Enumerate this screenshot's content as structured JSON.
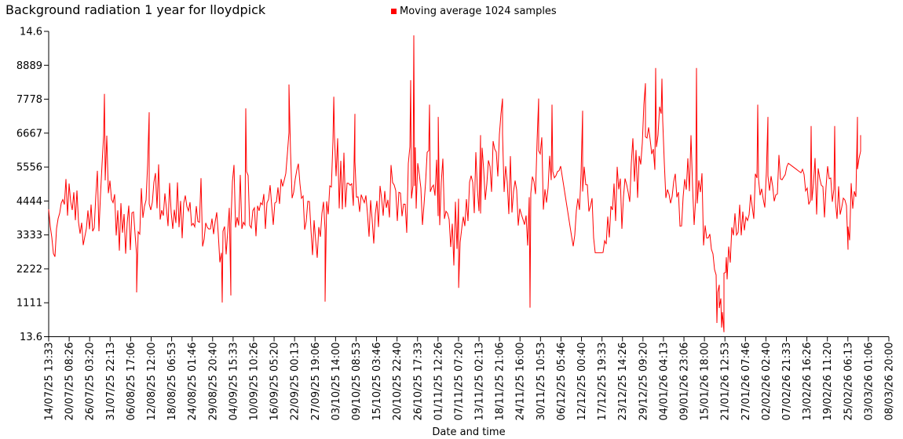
{
  "chart_data": {
    "type": "line",
    "title": "Background radiation 1 year for lloydpick",
    "legend": [
      "Moving average 1024 samples"
    ],
    "legend_position": "top-center",
    "xlabel": "Date and time",
    "ylabel": "",
    "grid": false,
    "background_color": "#ffffff",
    "axis_color": "#000000",
    "line_color": "#ff0000",
    "y_axis": {
      "scale_min": 0,
      "scale_max": 10000,
      "ticks": [
        {
          "label": "14.6",
          "value": 10000
        },
        {
          "label": "8889",
          "value": 8889
        },
        {
          "label": "7778",
          "value": 7778
        },
        {
          "label": "6667",
          "value": 6667
        },
        {
          "label": "5556",
          "value": 5556
        },
        {
          "label": "4444",
          "value": 4444
        },
        {
          "label": "3333",
          "value": 3333
        },
        {
          "label": "2222",
          "value": 2222
        },
        {
          "label": "1111",
          "value": 1111
        },
        {
          "label": "13.6",
          "value": 0
        }
      ]
    },
    "x_axis": {
      "tick_rotation_deg": -90,
      "ticks": [
        "14/07/25 13:33",
        "20/07/25 08:26",
        "26/07/25 03:20",
        "31/07/25 22:13",
        "06/08/25 17:06",
        "12/08/25 12:00",
        "18/08/25 06:53",
        "24/08/25 01:46",
        "29/08/25 20:40",
        "04/09/25 15:33",
        "10/09/25 10:26",
        "16/09/25 05:20",
        "22/09/25 00:13",
        "27/09/25 19:06",
        "03/10/25 14:00",
        "09/10/25 08:53",
        "15/10/25 03:46",
        "20/10/25 22:40",
        "26/10/25 17:33",
        "01/11/25 12:26",
        "07/11/25 07:20",
        "13/11/25 02:13",
        "18/11/25 21:06",
        "24/11/25 16:00",
        "30/11/25 10:53",
        "06/12/25 05:46",
        "12/12/25 00:40",
        "17/12/25 19:33",
        "23/12/25 14:26",
        "29/12/25 09:20",
        "04/01/26 04:13",
        "09/01/26 23:06",
        "15/01/26 18:00",
        "21/01/26 12:53",
        "27/01/26 07:46",
        "02/02/26 02:40",
        "07/02/26 21:33",
        "13/02/26 16:26",
        "19/02/26 11:20",
        "25/02/26 06:13",
        "03/03/26 01:06",
        "08/03/26 20:00"
      ]
    },
    "series": [
      {
        "name": "Moving average 1024 samples",
        "color": "#ff0000",
        "x_domain_frac": [
          0.0,
          0.9664
        ],
        "envelope_anchors": [
          [
            0.0,
            4100,
            700
          ],
          [
            0.0075,
            2700,
            500
          ],
          [
            0.0168,
            4800,
            1300
          ],
          [
            0.0308,
            4300,
            1400
          ],
          [
            0.0449,
            3600,
            1100
          ],
          [
            0.0589,
            4600,
            1500
          ],
          [
            0.0664,
            6000,
            1500
          ],
          [
            0.0776,
            4300,
            1300
          ],
          [
            0.0916,
            3800,
            1300
          ],
          [
            0.1028,
            2900,
            1200
          ],
          [
            0.1196,
            5300,
            1500
          ],
          [
            0.1336,
            4500,
            1400
          ],
          [
            0.1477,
            4800,
            1400
          ],
          [
            0.1617,
            4500,
            1500
          ],
          [
            0.1757,
            4300,
            1500
          ],
          [
            0.1897,
            3700,
            1400
          ],
          [
            0.2037,
            3000,
            1400
          ],
          [
            0.2271,
            4600,
            1500
          ],
          [
            0.2458,
            4400,
            1200
          ],
          [
            0.2598,
            4100,
            800
          ],
          [
            0.271,
            4400,
            900
          ],
          [
            0.2832,
            5400,
            1500
          ],
          [
            0.2953,
            4700,
            1400
          ],
          [
            0.3065,
            3900,
            1400
          ],
          [
            0.3206,
            3100,
            1300
          ],
          [
            0.3383,
            5600,
            1500
          ],
          [
            0.3505,
            5200,
            1500
          ],
          [
            0.3626,
            5200,
            1500
          ],
          [
            0.3766,
            4300,
            1300
          ],
          [
            0.3907,
            4400,
            1400
          ],
          [
            0.4047,
            4800,
            1500
          ],
          [
            0.4187,
            4300,
            1300
          ],
          [
            0.428,
            5000,
            1500
          ],
          [
            0.4421,
            4800,
            1500
          ],
          [
            0.4542,
            5400,
            1500
          ],
          [
            0.4654,
            4600,
            1500
          ],
          [
            0.4766,
            3900,
            1400
          ],
          [
            0.4869,
            3500,
            1300
          ],
          [
            0.4981,
            4300,
            1300
          ],
          [
            0.5121,
            4800,
            1400
          ],
          [
            0.5262,
            5200,
            1500
          ],
          [
            0.5383,
            5700,
            1600
          ],
          [
            0.5514,
            4500,
            1500
          ],
          [
            0.5636,
            3700,
            1500
          ],
          [
            0.585,
            5400,
            1600
          ],
          [
            0.5963,
            5200,
            1500
          ],
          [
            0.6093,
            5600,
            0
          ],
          [
            0.6243,
            2950,
            0
          ],
          [
            0.6336,
            4700,
            1500
          ],
          [
            0.6477,
            3700,
            900
          ],
          [
            0.6495,
            2750,
            0
          ],
          [
            0.6598,
            2750,
            0
          ],
          [
            0.6664,
            3700,
            1200
          ],
          [
            0.6804,
            4600,
            1400
          ],
          [
            0.6944,
            5200,
            1500
          ],
          [
            0.7084,
            6100,
            1500
          ],
          [
            0.7206,
            6700,
            1500
          ],
          [
            0.7318,
            6100,
            1600
          ],
          [
            0.7439,
            4900,
            1500
          ],
          [
            0.7551,
            4600,
            1500
          ],
          [
            0.7664,
            5400,
            1600
          ],
          [
            0.7785,
            4300,
            1500
          ],
          [
            0.7879,
            3300,
            1300
          ],
          [
            0.7944,
            1900,
            900
          ],
          [
            0.8,
            1000,
            700
          ],
          [
            0.8075,
            2000,
            800
          ],
          [
            0.8159,
            3300,
            1200
          ],
          [
            0.8299,
            3900,
            1300
          ],
          [
            0.8411,
            4400,
            1300
          ],
          [
            0.8533,
            4900,
            1400
          ],
          [
            0.8673,
            4700,
            1300
          ],
          [
            0.8794,
            5700,
            0
          ],
          [
            0.8963,
            5350,
            0
          ],
          [
            0.8991,
            4900,
            1200
          ],
          [
            0.9093,
            5000,
            1200
          ],
          [
            0.9215,
            4800,
            1300
          ],
          [
            0.9327,
            5200,
            1300
          ],
          [
            0.9439,
            4400,
            1200
          ],
          [
            0.9533,
            3900,
            1200
          ],
          [
            0.9607,
            5200,
            1200
          ],
          [
            0.9664,
            6300,
            600
          ]
        ],
        "key_points": [
          [
            0.0664,
            7950
          ],
          [
            0.1047,
            1450
          ],
          [
            0.1196,
            7350
          ],
          [
            0.2065,
            1120
          ],
          [
            0.2168,
            1350
          ],
          [
            0.2346,
            7480
          ],
          [
            0.286,
            8260
          ],
          [
            0.329,
            1150
          ],
          [
            0.3393,
            7860
          ],
          [
            0.3645,
            7300
          ],
          [
            0.4308,
            8400
          ],
          [
            0.4346,
            9870
          ],
          [
            0.4364,
            6200
          ],
          [
            0.4533,
            7600
          ],
          [
            0.4636,
            7200
          ],
          [
            0.4879,
            1600
          ],
          [
            0.514,
            6600
          ],
          [
            0.5402,
            7800
          ],
          [
            0.5729,
            950
          ],
          [
            0.5832,
            7800
          ],
          [
            0.5991,
            7600
          ],
          [
            0.6355,
            7400
          ],
          [
            0.7103,
            8300
          ],
          [
            0.7224,
            8800
          ],
          [
            0.7299,
            8450
          ],
          [
            0.771,
            8800
          ],
          [
            0.7953,
            450
          ],
          [
            0.7981,
            1700
          ],
          [
            0.8009,
            300
          ],
          [
            0.8037,
            150
          ],
          [
            0.8065,
            2600
          ],
          [
            0.8439,
            7600
          ],
          [
            0.8561,
            7200
          ],
          [
            0.9075,
            6900
          ],
          [
            0.9355,
            6900
          ],
          [
            0.9514,
            2850
          ],
          [
            0.9626,
            7200
          ],
          [
            0.9664,
            6600
          ]
        ]
      }
    ]
  }
}
